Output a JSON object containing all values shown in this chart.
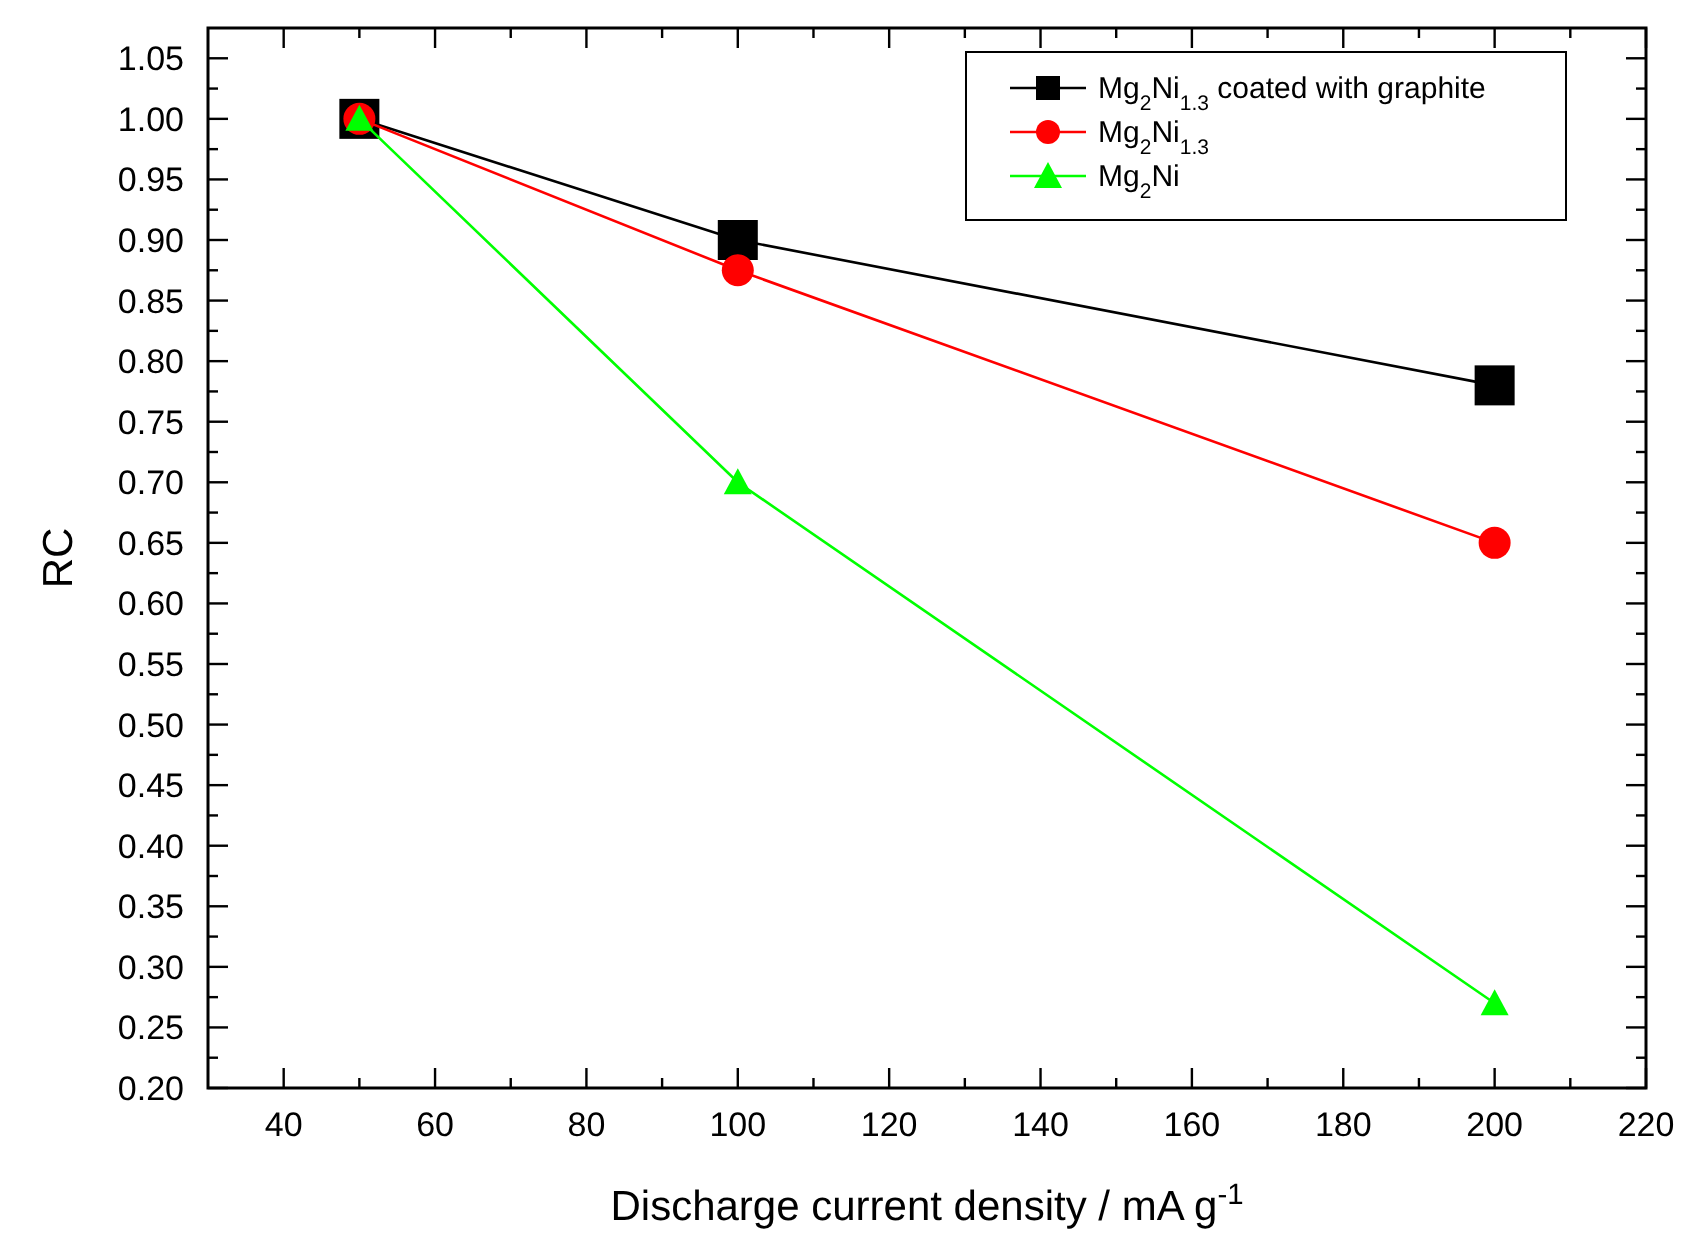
{
  "chart_data": {
    "type": "line",
    "xlabel": "Discharge current density / mA g$^{-1}$",
    "ylabel": "RC",
    "x": [
      50,
      100,
      200
    ],
    "series": [
      {
        "name": "Mg$_{2}$Ni$_{1.3}$ coated with graphite",
        "color": "#000000",
        "marker": "square",
        "values": [
          1.0,
          0.9,
          0.78
        ]
      },
      {
        "name": "Mg$_{2}$Ni$_{1.3}$",
        "color": "#ff0000",
        "marker": "circle",
        "values": [
          1.0,
          0.875,
          0.65
        ]
      },
      {
        "name": "Mg$_{2}$Ni",
        "color": "#00ff00",
        "marker": "triangle",
        "values": [
          1.0,
          0.7,
          0.27
        ]
      }
    ],
    "xlim": [
      30,
      220
    ],
    "xticks": [
      40,
      60,
      80,
      100,
      120,
      140,
      160,
      180,
      200,
      220
    ],
    "ylim": [
      0.2,
      1.075
    ],
    "yticks": [
      {
        "value": 0.2,
        "label": "0.20"
      },
      {
        "value": 0.25,
        "label": "0.25"
      },
      {
        "value": 0.3,
        "label": "0.30"
      },
      {
        "value": 0.35,
        "label": "0.35"
      },
      {
        "value": 0.4,
        "label": "0.40"
      },
      {
        "value": 0.45,
        "label": "0.45"
      },
      {
        "value": 0.5,
        "label": "0.50"
      },
      {
        "value": 0.55,
        "label": "0.55"
      },
      {
        "value": 0.6,
        "label": "0.60"
      },
      {
        "value": 0.65,
        "label": "0.65"
      },
      {
        "value": 0.7,
        "label": "0.70"
      },
      {
        "value": 0.75,
        "label": "0.75"
      },
      {
        "value": 0.8,
        "label": "0.80"
      },
      {
        "value": 0.85,
        "label": "0.85"
      },
      {
        "value": 0.9,
        "label": "0.90"
      },
      {
        "value": 0.95,
        "label": "0.95"
      },
      {
        "value": 1.0,
        "label": "1.00"
      },
      {
        "value": 1.05,
        "label": "1.05"
      }
    ],
    "grid": false,
    "legend": "top right",
    "line_style": "solid"
  }
}
